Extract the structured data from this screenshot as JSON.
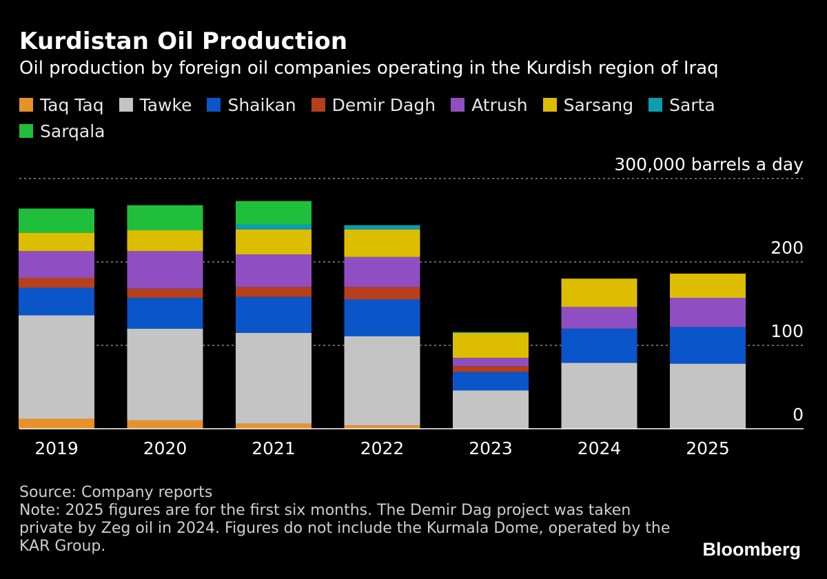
{
  "title": "Kurdistan Oil Production",
  "subtitle": "Oil production by foreign oil companies operating in the Kurdish region of Iraq",
  "source": "Source: Company reports",
  "note": "Note: 2025 figures are for the first six months. The Demir Dag project was taken private by Zeg oil in 2024. Figures do not include the Kurmala Dome, operated by the KAR Group.",
  "brand": "Bloomberg",
  "chart_data": {
    "type": "bar",
    "stacked": true,
    "title": "Kurdistan Oil Production",
    "subtitle": "Oil production by foreign oil companies operating in the Kurdish region of Iraq",
    "ylabel": "300,000 barrels a day",
    "ylim": [
      0,
      300000
    ],
    "y_ticks": [
      0,
      100000,
      200000,
      300000
    ],
    "y_tick_labels": [
      "0",
      "100",
      "200",
      "300,000 barrels a day"
    ],
    "grid": true,
    "legend_position": "top",
    "categories": [
      "2019",
      "2020",
      "2021",
      "2022",
      "2023",
      "2024",
      "2025"
    ],
    "series": [
      {
        "name": "Taq Taq",
        "color": "#e8912a",
        "values": [
          12000,
          10000,
          6000,
          4000,
          0,
          0,
          0
        ]
      },
      {
        "name": "Tawke",
        "color": "#c4c4c4",
        "values": [
          124000,
          110000,
          109000,
          107000,
          46000,
          79000,
          78000
        ]
      },
      {
        "name": "Shaikan",
        "color": "#0a55c9",
        "values": [
          33000,
          37000,
          43000,
          44000,
          22000,
          41000,
          44000
        ]
      },
      {
        "name": "Demir Dagh",
        "color": "#b5401b",
        "values": [
          12000,
          11000,
          12000,
          15000,
          7000,
          0,
          0
        ]
      },
      {
        "name": "Atrush",
        "color": "#8f4fc2",
        "values": [
          32000,
          45000,
          39000,
          36000,
          10000,
          26000,
          35000
        ]
      },
      {
        "name": "Sarsang",
        "color": "#dcbd00",
        "values": [
          22000,
          25000,
          30000,
          33000,
          30000,
          34000,
          29000
        ]
      },
      {
        "name": "Sarta",
        "color": "#0a9fae",
        "values": [
          0,
          0,
          6000,
          5000,
          1000,
          0,
          0
        ]
      },
      {
        "name": "Sarqala",
        "color": "#1fbf3c",
        "values": [
          29000,
          30000,
          28000,
          0,
          0,
          0,
          0
        ]
      }
    ]
  }
}
